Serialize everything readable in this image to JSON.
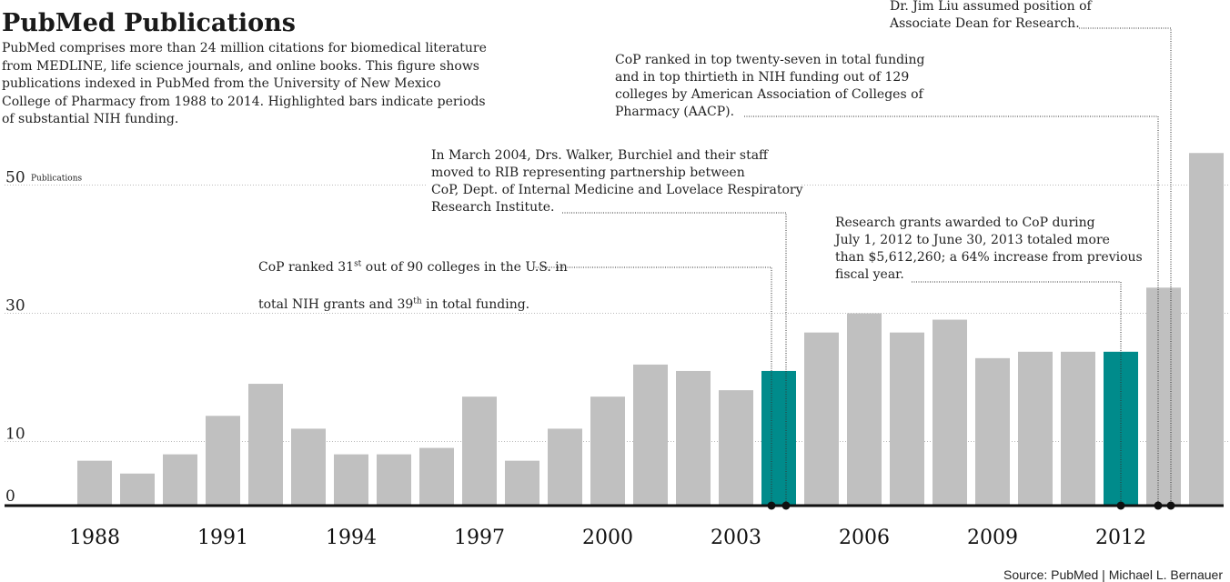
{
  "title": "PubMed Publications",
  "subtitle": "PubMed comprises more than 24 million citations for biomedical literature\nfrom MEDLINE, life science journals, and online books. This figure shows\npublications indexed in PubMed from the University of New Mexico\nCollege of Pharmacy from 1988 to 2014. Highlighted bars indicate periods\nof substantial NIH funding.",
  "source": "Source: PubMed | Michael L. Bernauer",
  "colors": {
    "bar": "#c0c0c0",
    "highlight": "#008b8b",
    "axis": "#111111",
    "grid": "#bbbbbb"
  },
  "annotations": {
    "a1_line1": "CoP ranked 31",
    "a1_sup1": "st",
    "a1_line1b": " out of 90 colleges in the U.S. in",
    "a1_line2": "total NIH grants and 39",
    "a1_sup2": "th",
    "a1_line2b": " in total funding.",
    "a2": "In March 2004, Drs. Walker, Burchiel and  their staff\nmoved to RIB representing partnership between\nCoP, Dept. of Internal Medicine and Lovelace Respiratory\nResearch Institute.",
    "a3": "CoP ranked in top twenty-seven in total funding\nand in top thirtieth in NIH funding  out of 129\ncolleges by American Association of Colleges of\nPharmacy (AACP).",
    "a4": "Research grants awarded to CoP during\nJuly 1, 2012 to June 30, 2013 totaled more\nthan $5,612,260; a 64% increase from previous\nfiscal year.",
    "a5": "Dr. Jim Liu assumed position of\nAssociate Dean for Research."
  },
  "chart_data": {
    "type": "bar",
    "title": "PubMed Publications",
    "ylabel": "Publications",
    "ylim": [
      0,
      55
    ],
    "yticks": [
      0,
      10,
      30,
      50
    ],
    "categories": [
      "1988",
      "1989",
      "1990",
      "1991",
      "1992",
      "1993",
      "1994",
      "1995",
      "1996",
      "1997",
      "1998",
      "1999",
      "2000",
      "2001",
      "2002",
      "2003",
      "2004",
      "2005",
      "2006",
      "2007",
      "2008",
      "2009",
      "2010",
      "2011",
      "2012",
      "2013",
      "2014"
    ],
    "xtick_labels": [
      "1988",
      "1991",
      "1994",
      "1997",
      "2000",
      "2003",
      "2006",
      "2009",
      "2012"
    ],
    "values": [
      7,
      5,
      8,
      14,
      19,
      12,
      8,
      8,
      9,
      17,
      7,
      12,
      17,
      22,
      21,
      18,
      21,
      27,
      30,
      27,
      29,
      23,
      24,
      24,
      24,
      34,
      55
    ],
    "highlighted": [
      "2004",
      "2012"
    ]
  }
}
